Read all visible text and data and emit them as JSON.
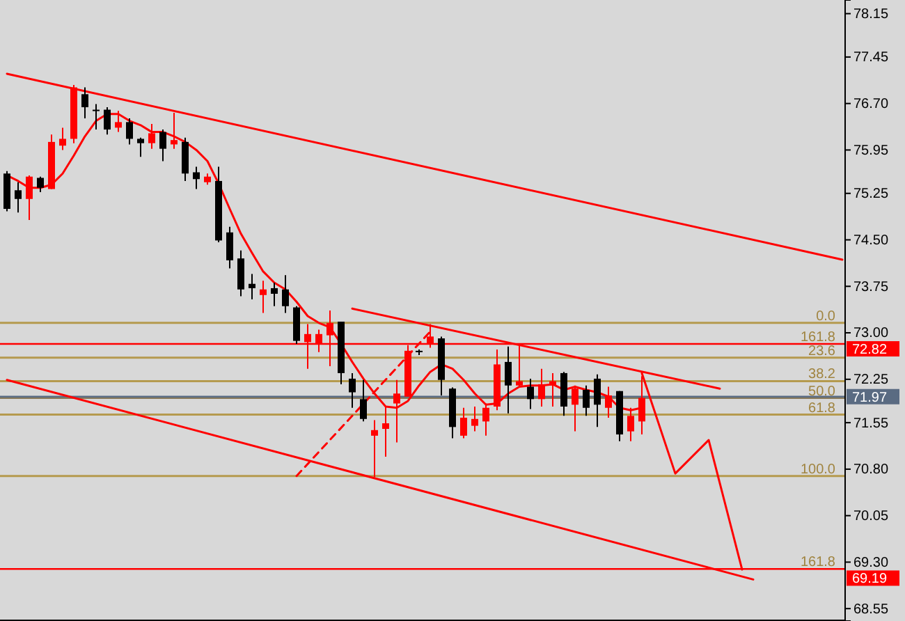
{
  "chart_data": {
    "type": "candlestick",
    "tick_labels": "y",
    "categories": [
      null,
      null,
      null,
      null,
      null,
      null,
      null,
      null,
      null,
      null,
      null,
      null,
      null,
      null,
      null,
      null,
      null,
      null,
      null,
      null,
      null,
      null,
      null,
      null,
      null,
      null,
      null,
      null,
      null,
      null,
      null,
      null,
      null,
      null,
      null,
      null,
      null,
      null,
      null,
      null,
      null,
      null,
      null,
      null,
      null,
      null,
      null,
      null,
      null,
      null,
      null,
      null,
      null,
      null,
      null,
      null,
      null,
      null,
      null,
      null,
      null,
      null,
      null,
      null,
      null,
      null,
      null,
      null,
      null,
      null,
      null,
      null,
      null,
      null,
      null,
      null
    ],
    "ohlc": [
      [
        75.57,
        75.61,
        74.96,
        75.0
      ],
      [
        75.3,
        75.43,
        74.94,
        75.16
      ],
      [
        75.16,
        75.54,
        74.82,
        75.52
      ],
      [
        75.5,
        75.52,
        75.27,
        75.34
      ],
      [
        75.32,
        76.2,
        75.32,
        76.08
      ],
      [
        76.02,
        76.31,
        75.95,
        76.13
      ],
      [
        76.13,
        77.0,
        76.06,
        76.96
      ],
      [
        76.85,
        76.96,
        76.46,
        76.64
      ],
      [
        76.6,
        76.69,
        76.28,
        76.58
      ],
      [
        76.6,
        76.64,
        76.2,
        76.28
      ],
      [
        76.31,
        76.58,
        76.24,
        76.4
      ],
      [
        76.4,
        76.46,
        76.04,
        76.13
      ],
      [
        76.13,
        76.15,
        75.84,
        76.06
      ],
      [
        76.06,
        76.37,
        75.97,
        76.22
      ],
      [
        76.24,
        76.28,
        75.77,
        75.97
      ],
      [
        76.04,
        76.55,
        75.97,
        76.11
      ],
      [
        76.08,
        76.15,
        75.45,
        75.57
      ],
      [
        75.59,
        75.68,
        75.32,
        75.48
      ],
      [
        75.43,
        75.57,
        75.39,
        75.52
      ],
      [
        75.45,
        75.68,
        74.46,
        74.49
      ],
      [
        74.62,
        74.71,
        74.04,
        74.17
      ],
      [
        74.2,
        74.33,
        73.59,
        73.7
      ],
      [
        73.79,
        73.95,
        73.54,
        73.72
      ],
      [
        73.61,
        73.84,
        73.32,
        73.7
      ],
      [
        73.72,
        73.81,
        73.43,
        73.63
      ],
      [
        73.7,
        73.93,
        73.32,
        73.43
      ],
      [
        73.41,
        73.43,
        72.82,
        72.87
      ],
      [
        72.85,
        73.14,
        72.42,
        72.98
      ],
      [
        72.82,
        73.05,
        72.69,
        72.98
      ],
      [
        72.96,
        73.36,
        72.46,
        73.16
      ],
      [
        73.18,
        73.18,
        72.17,
        72.35
      ],
      [
        72.26,
        72.35,
        71.79,
        72.04
      ],
      [
        71.93,
        72.24,
        71.57,
        71.61
      ],
      [
        71.34,
        71.59,
        70.67,
        71.43
      ],
      [
        71.45,
        71.81,
        71.0,
        71.54
      ],
      [
        71.86,
        72.24,
        71.23,
        72.02
      ],
      [
        71.97,
        72.8,
        71.97,
        72.71
      ],
      [
        72.71,
        72.73,
        72.64,
        72.69
      ],
      [
        72.82,
        73.14,
        72.76,
        72.94
      ],
      [
        72.91,
        72.94,
        71.99,
        72.24
      ],
      [
        72.1,
        72.12,
        71.3,
        71.48
      ],
      [
        71.34,
        71.79,
        71.3,
        71.63
      ],
      [
        71.5,
        71.81,
        71.41,
        71.61
      ],
      [
        71.57,
        71.86,
        71.34,
        71.79
      ],
      [
        71.81,
        72.73,
        71.75,
        72.49
      ],
      [
        72.53,
        72.78,
        71.7,
        72.15
      ],
      [
        72.15,
        72.8,
        72.13,
        72.22
      ],
      [
        72.13,
        72.26,
        71.77,
        71.93
      ],
      [
        71.93,
        72.42,
        71.81,
        72.17
      ],
      [
        72.15,
        72.35,
        71.81,
        72.22
      ],
      [
        72.35,
        72.37,
        71.66,
        71.81
      ],
      [
        71.84,
        72.15,
        71.41,
        72.1
      ],
      [
        72.08,
        72.15,
        71.66,
        71.79
      ],
      [
        72.26,
        72.33,
        71.48,
        71.84
      ],
      [
        71.79,
        72.13,
        71.63,
        71.99
      ],
      [
        72.06,
        72.06,
        71.25,
        71.36
      ],
      [
        71.41,
        71.79,
        71.25,
        71.66
      ],
      [
        71.57,
        72.3,
        71.36,
        71.95
      ],
      null,
      null,
      null,
      null,
      null,
      null,
      null,
      null,
      null,
      null,
      null,
      null,
      null,
      null,
      null,
      null,
      null,
      null
    ],
    "colors": [
      "#000000",
      "#000000",
      "#ff0000",
      "#000000",
      "#ff0000",
      "#ff0000",
      "#ff0000",
      "#000000",
      "#000000",
      "#000000",
      "#ff0000",
      "#000000",
      "#000000",
      "#ff0000",
      "#000000",
      "#ff0000",
      "#000000",
      "#000000",
      "#ff0000",
      "#000000",
      "#000000",
      "#000000",
      "#000000",
      "#ff0000",
      "#000000",
      "#000000",
      "#000000",
      "#ff0000",
      "#ff0000",
      "#ff0000",
      "#000000",
      "#000000",
      "#000000",
      "#ff0000",
      "#ff0000",
      "#ff0000",
      "#ff0000",
      "#000000",
      "#ff0000",
      "#000000",
      "#000000",
      "#ff0000",
      "#ff0000",
      "#ff0000",
      "#ff0000",
      "#000000",
      "#ff0000",
      "#000000",
      "#ff0000",
      "#ff0000",
      "#000000",
      "#ff0000",
      "#000000",
      "#000000",
      "#ff0000",
      "#000000",
      "#ff0000",
      "#ff0000",
      null,
      null,
      null,
      null,
      null,
      null,
      null,
      null,
      null,
      null,
      null,
      null,
      null,
      null,
      null,
      null,
      null,
      null
    ],
    "series": [
      {
        "type": "line",
        "color": "#ff0000",
        "values": [
          75.54,
          75.45,
          75.34,
          75.34,
          75.39,
          75.57,
          75.86,
          76.17,
          76.42,
          76.53,
          76.53,
          76.42,
          76.35,
          76.24,
          76.24,
          76.17,
          76.08,
          75.95,
          75.77,
          75.41,
          75.0,
          74.6,
          74.29,
          73.99,
          73.81,
          73.7,
          73.5,
          73.27,
          73.16,
          73.09,
          72.82,
          72.53,
          72.26,
          72.02,
          71.81,
          71.79,
          71.9,
          72.15,
          72.37,
          72.49,
          72.42,
          72.24,
          72.02,
          71.84,
          71.86,
          72.02,
          72.13,
          72.15,
          72.15,
          72.17,
          72.08,
          72.13,
          72.08,
          72.04,
          71.97,
          71.79,
          71.75,
          71.79,
          null,
          null,
          null,
          null,
          null,
          null,
          null,
          null,
          null,
          null,
          null,
          null,
          null,
          null,
          null,
          null,
          null,
          null
        ]
      },
      {
        "type": "line",
        "color": "#ff0000",
        "values": [
          77.18,
          null,
          null,
          null,
          null,
          null,
          null,
          null,
          null,
          null,
          null,
          null,
          null,
          null,
          null,
          null,
          null,
          null,
          null,
          null,
          null,
          null,
          null,
          null,
          null,
          null,
          null,
          null,
          null,
          null,
          null,
          null,
          null,
          null,
          null,
          null,
          null,
          null,
          null,
          null,
          null,
          null,
          null,
          null,
          null,
          null,
          null,
          null,
          null,
          null,
          null,
          null,
          null,
          null,
          null,
          null,
          null,
          null,
          null,
          null,
          null,
          null,
          null,
          null,
          null,
          null,
          null,
          null,
          null,
          null,
          null,
          null,
          null,
          null,
          null,
          74.18
        ]
      },
      {
        "type": "line",
        "color": "#ff0000",
        "values": [
          72.24,
          null,
          null,
          null,
          null,
          null,
          null,
          null,
          null,
          null,
          null,
          null,
          null,
          null,
          null,
          null,
          null,
          null,
          null,
          null,
          null,
          null,
          null,
          null,
          null,
          null,
          null,
          null,
          null,
          null,
          null,
          null,
          null,
          null,
          null,
          null,
          null,
          null,
          null,
          null,
          null,
          null,
          null,
          null,
          null,
          null,
          null,
          null,
          null,
          null,
          null,
          null,
          null,
          null,
          null,
          null,
          null,
          null,
          null,
          null,
          null,
          null,
          null,
          null,
          null,
          null,
          null,
          69.02,
          null,
          null,
          null,
          null,
          null,
          null,
          null,
          null
        ]
      },
      {
        "type": "line",
        "color": "#ff0000",
        "values": [
          null,
          null,
          null,
          null,
          null,
          null,
          null,
          null,
          null,
          null,
          null,
          null,
          null,
          null,
          null,
          null,
          null,
          null,
          null,
          null,
          null,
          null,
          null,
          null,
          null,
          null,
          null,
          null,
          null,
          null,
          null,
          73.39,
          null,
          null,
          null,
          null,
          null,
          null,
          null,
          null,
          null,
          null,
          null,
          null,
          null,
          null,
          null,
          null,
          null,
          null,
          null,
          null,
          null,
          null,
          null,
          null,
          null,
          null,
          null,
          null,
          null,
          null,
          null,
          null,
          72.1,
          null,
          null,
          null,
          null,
          null,
          null,
          null,
          null,
          null,
          null,
          null
        ]
      },
      {
        "type": "line",
        "color": "#ff0000",
        "line_style": "dashed",
        "values": [
          null,
          null,
          null,
          null,
          null,
          null,
          null,
          null,
          null,
          null,
          null,
          null,
          null,
          null,
          null,
          null,
          null,
          null,
          null,
          null,
          null,
          null,
          null,
          null,
          null,
          null,
          70.69,
          null,
          null,
          null,
          null,
          null,
          null,
          null,
          null,
          null,
          null,
          null,
          73.02,
          null,
          null,
          null,
          null,
          null,
          null,
          null,
          null,
          null,
          null,
          null,
          null,
          null,
          null,
          null,
          null,
          null,
          null,
          null,
          null,
          null,
          null,
          null,
          null,
          null,
          null,
          null,
          null,
          null,
          null,
          null,
          null,
          null,
          null,
          null,
          null,
          null
        ]
      },
      {
        "type": "line",
        "color": "#ff0000",
        "values": [
          null,
          null,
          null,
          null,
          null,
          null,
          null,
          null,
          null,
          null,
          null,
          null,
          null,
          null,
          null,
          null,
          null,
          null,
          null,
          null,
          null,
          null,
          null,
          null,
          null,
          null,
          null,
          null,
          null,
          null,
          null,
          null,
          null,
          null,
          null,
          null,
          null,
          null,
          null,
          null,
          null,
          null,
          null,
          null,
          null,
          null,
          null,
          null,
          null,
          null,
          null,
          null,
          null,
          null,
          null,
          null,
          null,
          72.35,
          null,
          null,
          70.73,
          null,
          null,
          71.27,
          null,
          null,
          69.18,
          null,
          null,
          null,
          null,
          null,
          null,
          null,
          null,
          null
        ]
      }
    ],
    "ylim": [
      68.35,
      78.37
    ],
    "yticks": [
      78.15,
      77.45,
      {
        "value": 76.7,
        "label": "76.70"
      },
      75.95,
      75.25,
      {
        "value": 74.5,
        "label": "74.50"
      },
      73.75,
      {
        "value": 73,
        "label": "73.00"
      },
      72.25,
      71.55,
      {
        "value": 70.8,
        "label": "70.80"
      },
      70.05,
      {
        "value": 69.3,
        "label": "69.30"
      },
      68.55
    ],
    "ref_lines": [
      {
        "axis": "y",
        "value": 73.16,
        "color": "#b59a4e"
      },
      {
        "axis": "y",
        "value": 72.6,
        "color": "#b59a4e"
      },
      {
        "axis": "y",
        "value": 72.22,
        "color": "#b59a4e"
      },
      {
        "axis": "y",
        "value": 71.95,
        "color": "#8a7a5a"
      },
      {
        "axis": "y",
        "value": 71.68,
        "color": "#b59a4e"
      },
      {
        "axis": "y",
        "value": 70.69,
        "color": "#b59a4e"
      },
      {
        "axis": "y",
        "value": 72.82,
        "label": "72.82",
        "color": "#ff0000"
      },
      {
        "axis": "y",
        "value": 71.97,
        "label": "71.97",
        "color": "#5a6b82"
      },
      {
        "axis": "y",
        "value": 69.19,
        "label": "69.19",
        "color": "#ff0000"
      }
    ],
    "annotations": [
      {
        "text": "0.0",
        "y": 73.16
      },
      {
        "text": "161.8",
        "y": 72.82
      },
      {
        "text": "23.6",
        "y": 72.6
      },
      {
        "text": "38.2",
        "y": 72.22
      },
      {
        "text": "50.0",
        "y": 71.95
      },
      {
        "text": "61.8",
        "y": 71.68
      },
      {
        "text": "100.0",
        "y": 70.69
      },
      {
        "text": "161.8",
        "y": 69.19
      }
    ]
  }
}
